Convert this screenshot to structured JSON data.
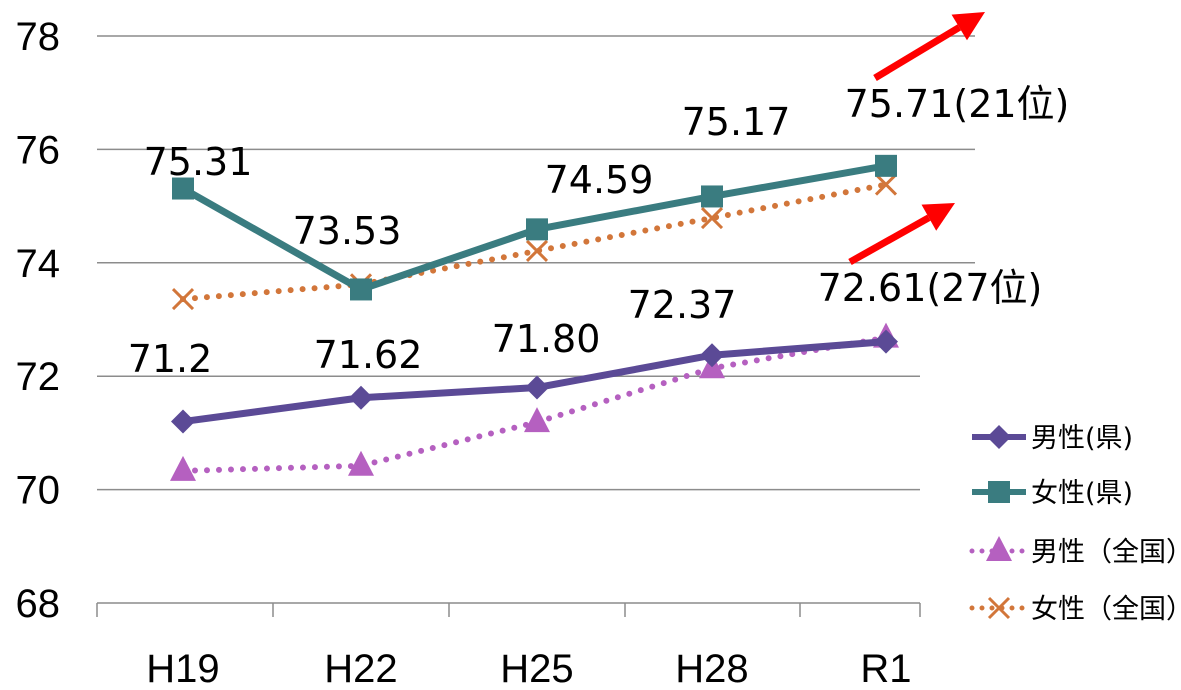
{
  "chart_data": {
    "type": "line",
    "categories": [
      "H19",
      "H22",
      "H25",
      "H28",
      "R1"
    ],
    "yticks": [
      "68",
      "70",
      "72",
      "74",
      "76",
      "78"
    ],
    "ylim": [
      68,
      78
    ],
    "grid": true,
    "legend_position": "right",
    "series": [
      {
        "name": "男性(県)",
        "values": [
          71.2,
          71.62,
          71.8,
          72.37,
          72.61
        ],
        "color": "#5B4A96",
        "marker": "diamond",
        "dash": "solid"
      },
      {
        "name": "女性(県)",
        "values": [
          75.31,
          73.53,
          74.59,
          75.17,
          75.71
        ],
        "color": "#3A7C80",
        "marker": "square",
        "dash": "solid"
      },
      {
        "name": "男性（全国）",
        "values": [
          70.33,
          70.42,
          71.19,
          72.14,
          72.68
        ],
        "color": "#B560C0",
        "marker": "triangle",
        "dash": "dotted"
      },
      {
        "name": "女性（全国）",
        "values": [
          73.36,
          73.62,
          74.21,
          74.79,
          75.38
        ],
        "color": "#D2763A",
        "marker": "x",
        "dash": "dotted"
      }
    ],
    "data_labels": {
      "male_pref": [
        "71.2",
        "71.62",
        "71.80",
        "72.37",
        "72.61(27位)"
      ],
      "female_pref": [
        "75.31",
        "73.53",
        "74.59",
        "75.17",
        "75.71(21位)"
      ]
    },
    "arrow_color": "#FF0000"
  }
}
